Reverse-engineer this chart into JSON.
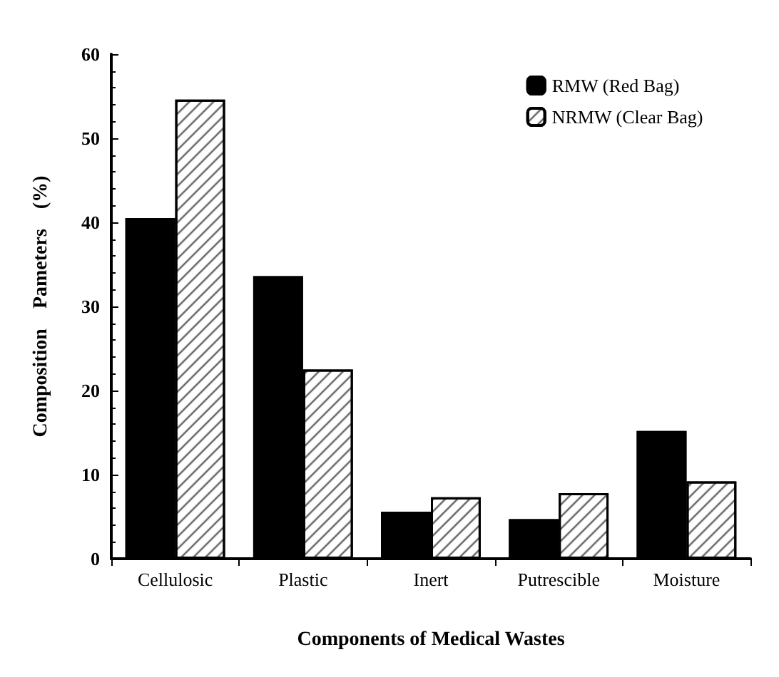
{
  "chart_data": {
    "type": "bar",
    "xlabel": "Components of Medical Wastes",
    "ylabel": "Composition    Pameters    (%)",
    "categories": [
      "Cellulosic",
      "Plastic",
      "Inert",
      "Putrescible",
      "Moisture"
    ],
    "series": [
      {
        "name": "RMW (Red Bag)",
        "color": "#000000",
        "values": [
          40.5,
          33.6,
          5.6,
          4.7,
          15.2
        ]
      },
      {
        "name": "NRMW (Clear Bag)",
        "color": "#ffffff",
        "values": [
          54.6,
          22.5,
          7.3,
          7.8,
          9.2
        ]
      }
    ],
    "ylim": [
      0,
      60
    ],
    "yticks": [
      0,
      10,
      20,
      30,
      40,
      50,
      60
    ],
    "grid": false,
    "legend": "top right"
  }
}
